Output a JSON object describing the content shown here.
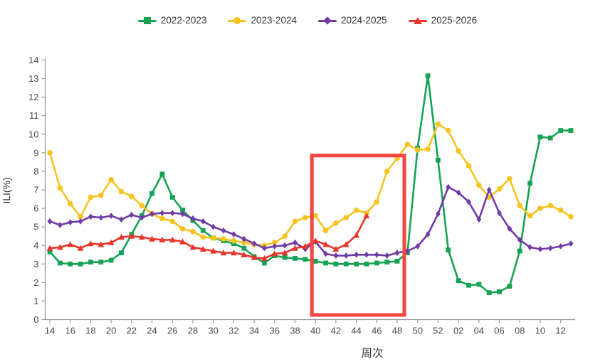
{
  "chart_data": {
    "type": "line",
    "title": "",
    "xlabel": "周次",
    "ylabel": "ILI(%)",
    "ylim": [
      0,
      14
    ],
    "y_ticks": [
      0,
      1,
      2,
      3,
      4,
      5,
      6,
      7,
      8,
      9,
      10,
      11,
      12,
      13,
      14
    ],
    "grid": false,
    "legend_position": "top-center",
    "x_tick_every": 2,
    "weeks": [
      "14",
      "15",
      "16",
      "17",
      "18",
      "19",
      "20",
      "21",
      "22",
      "23",
      "24",
      "25",
      "26",
      "27",
      "28",
      "29",
      "30",
      "31",
      "32",
      "33",
      "34",
      "35",
      "36",
      "37",
      "38",
      "39",
      "40",
      "41",
      "42",
      "43",
      "44",
      "45",
      "46",
      "47",
      "48",
      "49",
      "50",
      "51",
      "52",
      "01",
      "02",
      "03",
      "04",
      "05",
      "06",
      "07",
      "08",
      "09",
      "10",
      "11",
      "12",
      "13"
    ],
    "series": [
      {
        "name": "2022-2023",
        "color": "#16a353",
        "marker": "square",
        "values": [
          3.65,
          3.05,
          3.0,
          3.0,
          3.1,
          3.1,
          3.2,
          3.6,
          4.6,
          5.6,
          6.8,
          7.85,
          6.6,
          5.9,
          5.35,
          4.8,
          4.4,
          4.25,
          4.1,
          3.85,
          3.4,
          3.05,
          3.45,
          3.35,
          3.3,
          3.25,
          3.15,
          3.05,
          3.0,
          3.0,
          3.0,
          3.0,
          3.05,
          3.1,
          3.15,
          3.6,
          9.25,
          13.15,
          8.6,
          3.75,
          2.1,
          1.85,
          1.9,
          1.45,
          1.5,
          1.8,
          3.7,
          7.35,
          9.85,
          9.8,
          10.2,
          10.2
        ]
      },
      {
        "name": "2023-2024",
        "color": "#f6c421",
        "marker": "circle",
        "values": [
          9.0,
          7.1,
          6.25,
          5.55,
          6.6,
          6.7,
          7.55,
          6.9,
          6.65,
          6.15,
          5.7,
          5.45,
          5.3,
          4.9,
          4.75,
          4.45,
          4.4,
          4.35,
          4.25,
          4.15,
          4.05,
          4.0,
          4.15,
          4.5,
          5.3,
          5.5,
          5.6,
          4.8,
          5.2,
          5.5,
          5.9,
          5.75,
          6.35,
          8.0,
          8.7,
          9.45,
          9.15,
          9.2,
          10.55,
          10.2,
          9.1,
          8.3,
          7.25,
          6.6,
          7.05,
          7.6,
          6.15,
          5.6,
          6.0,
          6.15,
          5.9,
          5.55
        ]
      },
      {
        "name": "2024-2025",
        "color": "#6f3ba5",
        "marker": "diamond",
        "values": [
          5.3,
          5.1,
          5.25,
          5.3,
          5.55,
          5.5,
          5.6,
          5.4,
          5.65,
          5.5,
          5.7,
          5.75,
          5.75,
          5.7,
          5.45,
          5.3,
          5.0,
          4.8,
          4.6,
          4.35,
          4.1,
          3.85,
          3.95,
          4.0,
          4.15,
          3.8,
          4.2,
          3.55,
          3.45,
          3.45,
          3.5,
          3.5,
          3.5,
          3.45,
          3.6,
          3.7,
          3.95,
          4.6,
          5.7,
          7.15,
          6.85,
          6.35,
          5.4,
          7.0,
          5.75,
          4.9,
          4.3,
          3.9,
          3.8,
          3.85,
          3.95,
          4.1
        ]
      },
      {
        "name": "2025-2026",
        "color": "#e7352b",
        "marker": "triangle",
        "values": [
          3.85,
          3.9,
          4.05,
          3.85,
          4.1,
          4.05,
          4.15,
          4.45,
          4.5,
          4.45,
          4.35,
          4.3,
          4.3,
          4.2,
          3.9,
          3.8,
          3.7,
          3.6,
          3.6,
          3.5,
          3.35,
          3.3,
          3.55,
          3.6,
          3.85,
          3.95,
          4.25,
          4.05,
          3.8,
          4.05,
          4.55,
          5.6,
          null,
          null,
          null,
          null,
          null,
          null,
          null,
          null,
          null,
          null,
          null,
          null,
          null,
          null,
          null,
          null,
          null,
          null,
          null,
          null
        ]
      }
    ],
    "highlight_box": {
      "week_start": "40",
      "week_end": "48",
      "y_from": 0.25,
      "y_to": 8.85,
      "color": "#f4453e"
    },
    "axis_color": "#999999",
    "tick_label_color": "#4a4a4a"
  }
}
